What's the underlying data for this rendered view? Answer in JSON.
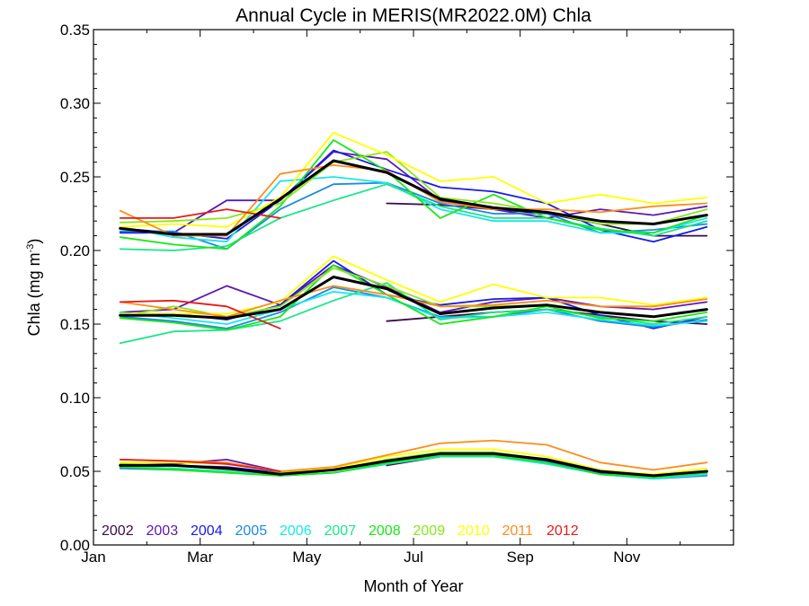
{
  "chart_data": {
    "type": "line",
    "title": "Annual Cycle in MERIS(MR2022.0M) Chla",
    "xlabel": "Month of Year",
    "ylabel_main": "Chla (mg m",
    "ylabel_sup": "-3",
    "ylabel_close": ")",
    "xlim": [
      0,
      12
    ],
    "ylim": [
      0,
      0.35
    ],
    "x_ticks": [
      {
        "value": 0,
        "label": "Jan"
      },
      {
        "value": 2,
        "label": "Mar"
      },
      {
        "value": 4,
        "label": "May"
      },
      {
        "value": 6,
        "label": "Jul"
      },
      {
        "value": 8,
        "label": "Sep"
      },
      {
        "value": 10,
        "label": "Nov"
      }
    ],
    "y_ticks": [
      {
        "value": 0.0,
        "label": "0.00"
      },
      {
        "value": 0.05,
        "label": "0.05"
      },
      {
        "value": 0.1,
        "label": "0.10"
      },
      {
        "value": 0.15,
        "label": "0.15"
      },
      {
        "value": 0.2,
        "label": "0.20"
      },
      {
        "value": 0.25,
        "label": "0.25"
      },
      {
        "value": 0.3,
        "label": "0.30"
      },
      {
        "value": 0.35,
        "label": "0.35"
      }
    ],
    "x": [
      0.5,
      1.5,
      2.5,
      3.5,
      4.5,
      5.5,
      6.5,
      7.5,
      8.5,
      9.5,
      10.5,
      11.5
    ],
    "legend_position": "bottom-left",
    "series": [
      {
        "name": "2002",
        "color": "#3d0a4f",
        "groups": {
          "upper": [
            null,
            null,
            null,
            null,
            null,
            0.232,
            0.231,
            0.228,
            0.225,
            0.218,
            0.21,
            0.21
          ],
          "middle": [
            null,
            null,
            null,
            null,
            null,
            0.152,
            0.155,
            0.158,
            0.16,
            0.156,
            0.152,
            0.15
          ],
          "lower": [
            null,
            null,
            null,
            null,
            null,
            0.054,
            0.06,
            0.061,
            0.058,
            0.05,
            0.047,
            0.05
          ]
        }
      },
      {
        "name": "2003",
        "color": "#5a1ab5",
        "groups": {
          "upper": [
            0.215,
            0.212,
            0.234,
            0.234,
            0.267,
            0.262,
            0.234,
            0.228,
            0.222,
            0.228,
            0.224,
            0.23
          ],
          "middle": [
            0.158,
            0.16,
            0.176,
            0.163,
            0.19,
            0.175,
            0.158,
            0.165,
            0.168,
            0.162,
            0.16,
            0.165
          ],
          "lower": [
            0.054,
            0.055,
            0.058,
            0.05,
            0.051,
            0.056,
            0.062,
            0.062,
            0.058,
            0.05,
            0.047,
            0.05
          ]
        }
      },
      {
        "name": "2004",
        "color": "#1a1ae6",
        "groups": {
          "upper": [
            0.212,
            0.212,
            0.208,
            0.234,
            0.268,
            0.255,
            0.243,
            0.24,
            0.232,
            0.214,
            0.206,
            0.216
          ],
          "middle": [
            0.157,
            0.157,
            0.153,
            0.163,
            0.193,
            0.17,
            0.163,
            0.167,
            0.168,
            0.156,
            0.147,
            0.155
          ],
          "lower": [
            0.054,
            0.054,
            0.053,
            0.049,
            0.052,
            0.056,
            0.062,
            0.062,
            0.057,
            0.049,
            0.046,
            0.048
          ]
        }
      },
      {
        "name": "2005",
        "color": "#1a8ae6",
        "groups": {
          "upper": [
            0.213,
            0.213,
            0.201,
            0.228,
            0.245,
            0.246,
            0.232,
            0.225,
            0.225,
            0.212,
            0.214,
            0.218
          ],
          "middle": [
            0.155,
            0.152,
            0.147,
            0.158,
            0.175,
            0.168,
            0.155,
            0.155,
            0.16,
            0.152,
            0.148,
            0.153
          ],
          "lower": [
            0.052,
            0.051,
            0.05,
            0.047,
            0.049,
            0.055,
            0.061,
            0.061,
            0.056,
            0.048,
            0.045,
            0.047
          ]
        }
      },
      {
        "name": "2006",
        "color": "#1ae6e6",
        "groups": {
          "upper": [
            0.216,
            0.209,
            0.206,
            0.247,
            0.25,
            0.246,
            0.228,
            0.22,
            0.22,
            0.212,
            0.212,
            0.222
          ],
          "middle": [
            0.158,
            0.154,
            0.15,
            0.16,
            0.172,
            0.168,
            0.154,
            0.155,
            0.158,
            0.153,
            0.149,
            0.152
          ],
          "lower": [
            0.053,
            0.052,
            0.05,
            0.047,
            0.049,
            0.055,
            0.06,
            0.06,
            0.055,
            0.048,
            0.045,
            0.048
          ]
        }
      },
      {
        "name": "2007",
        "color": "#1ae68a",
        "groups": {
          "upper": [
            0.201,
            0.2,
            0.203,
            0.222,
            0.234,
            0.245,
            0.23,
            0.222,
            0.222,
            0.215,
            0.21,
            0.22
          ],
          "middle": [
            0.137,
            0.145,
            0.146,
            0.152,
            0.166,
            0.178,
            0.153,
            0.158,
            0.16,
            0.155,
            0.15,
            0.155
          ],
          "lower": [
            0.053,
            0.052,
            0.049,
            0.047,
            0.049,
            0.055,
            0.06,
            0.06,
            0.056,
            0.048,
            0.046,
            0.049
          ]
        }
      },
      {
        "name": "2008",
        "color": "#1ae61a",
        "groups": {
          "upper": [
            0.209,
            0.204,
            0.201,
            0.23,
            0.275,
            0.254,
            0.222,
            0.238,
            0.222,
            0.214,
            0.212,
            0.224
          ],
          "middle": [
            0.154,
            0.151,
            0.146,
            0.155,
            0.19,
            0.17,
            0.15,
            0.155,
            0.162,
            0.154,
            0.152,
            0.158
          ],
          "lower": [
            0.053,
            0.051,
            0.049,
            0.047,
            0.049,
            0.056,
            0.061,
            0.061,
            0.056,
            0.048,
            0.046,
            0.049
          ]
        }
      },
      {
        "name": "2009",
        "color": "#8ae61a",
        "groups": {
          "upper": [
            0.219,
            0.22,
            0.222,
            0.232,
            0.26,
            0.267,
            0.236,
            0.232,
            0.226,
            0.218,
            0.218,
            0.228
          ],
          "middle": [
            0.155,
            0.162,
            0.155,
            0.162,
            0.188,
            0.176,
            0.162,
            0.162,
            0.163,
            0.158,
            0.155,
            0.16
          ],
          "lower": [
            0.055,
            0.054,
            0.051,
            0.049,
            0.051,
            0.058,
            0.063,
            0.063,
            0.058,
            0.05,
            0.047,
            0.05
          ]
        }
      },
      {
        "name": "2010",
        "color": "#ffff00",
        "groups": {
          "upper": [
            0.216,
            0.218,
            0.216,
            0.236,
            0.28,
            0.265,
            0.247,
            0.25,
            0.232,
            0.238,
            0.232,
            0.236
          ],
          "middle": [
            0.157,
            0.157,
            0.157,
            0.165,
            0.196,
            0.18,
            0.165,
            0.177,
            0.168,
            0.168,
            0.163,
            0.168
          ],
          "lower": [
            0.056,
            0.056,
            0.055,
            0.05,
            0.052,
            0.06,
            0.065,
            0.065,
            0.06,
            0.051,
            0.048,
            0.052
          ]
        }
      },
      {
        "name": "2011",
        "color": "#ff8c1a",
        "groups": {
          "upper": [
            0.227,
            0.21,
            0.21,
            0.252,
            0.258,
            0.254,
            0.233,
            0.228,
            0.228,
            0.226,
            0.23,
            0.232
          ],
          "middle": [
            0.165,
            0.16,
            0.155,
            0.166,
            0.176,
            0.17,
            0.162,
            0.163,
            0.166,
            0.162,
            0.162,
            0.167
          ],
          "lower": [
            0.058,
            0.057,
            0.056,
            0.05,
            0.053,
            0.061,
            0.069,
            0.071,
            0.068,
            0.056,
            0.051,
            0.056
          ]
        }
      },
      {
        "name": "2012",
        "color": "#e61a1a",
        "groups": {
          "upper": [
            0.222,
            0.222,
            0.228,
            0.222,
            null,
            null,
            null,
            null,
            null,
            null,
            null,
            null
          ],
          "middle": [
            0.165,
            0.166,
            0.162,
            0.147,
            null,
            null,
            null,
            null,
            null,
            null,
            null,
            null
          ],
          "lower": [
            0.058,
            0.057,
            0.055,
            0.05,
            null,
            null,
            null,
            null,
            null,
            null,
            null,
            null
          ]
        }
      },
      {
        "name": "",
        "color": "#000000",
        "mean": true,
        "groups": {
          "upper": [
            0.215,
            0.211,
            0.211,
            0.235,
            0.261,
            0.253,
            0.235,
            0.229,
            0.226,
            0.22,
            0.218,
            0.224
          ],
          "middle": [
            0.156,
            0.156,
            0.154,
            0.16,
            0.182,
            0.174,
            0.157,
            0.161,
            0.163,
            0.158,
            0.155,
            0.16
          ],
          "lower": [
            0.054,
            0.054,
            0.052,
            0.048,
            0.051,
            0.057,
            0.062,
            0.062,
            0.058,
            0.05,
            0.047,
            0.05
          ]
        }
      }
    ]
  }
}
